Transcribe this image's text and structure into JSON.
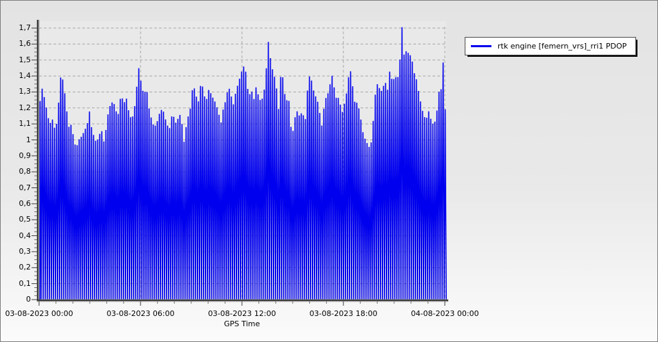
{
  "window": {
    "background_top": "#e3e3e3",
    "background_bottom": "#fbfbfb"
  },
  "legend": {
    "entries": [
      {
        "label": "rtk engine [femern_vrs]_rri1 PDOP",
        "color": "#0000ee"
      }
    ],
    "position": "top-right"
  },
  "chart_data": {
    "type": "line",
    "title": "",
    "xlabel": "GPS Time",
    "ylabel": "",
    "grid": "dashed",
    "plot_bg": "#e9e9e9",
    "grid_color": "#a9a9a9",
    "x_tick_labels": [
      "03-08-2023 00:00",
      "03-08-2023 06:00",
      "03-08-2023 12:00",
      "03-08-2023 18:00",
      "04-08-2023 00:00"
    ],
    "x_tick_hours": [
      0,
      6,
      12,
      18,
      24
    ],
    "y_tick_labels": [
      "0",
      "0,1",
      "0,2",
      "0,3",
      "0,4",
      "0,5",
      "0,6",
      "0,7",
      "0,8",
      "0,9",
      "1",
      "1,1",
      "1,2",
      "1,3",
      "1,4",
      "1,5",
      "1,6",
      "1,7"
    ],
    "y_tick_values": [
      0,
      0.1,
      0.2,
      0.3,
      0.4,
      0.5,
      0.6,
      0.7,
      0.8,
      0.9,
      1.0,
      1.1,
      1.2,
      1.3,
      1.4,
      1.5,
      1.6,
      1.7
    ],
    "ylim": [
      0,
      1.74
    ],
    "xlim_hours": [
      0,
      24.07
    ],
    "legend_entries": [
      "rtk engine [femern_vrs]_rri1 PDOP"
    ],
    "render_note": "trace drops to 0 between epochs, forming a dense comb of vertical spikes; envelope below is the PDOP upper trace",
    "sample_comb_period_hours": 0.1216,
    "series": [
      {
        "name": "rtk engine [femern_vrs]_rri1 PDOP",
        "color": "#0000ee",
        "points": [
          [
            0.0,
            1.19
          ],
          [
            0.08,
            1.26
          ],
          [
            0.15,
            1.33
          ],
          [
            0.22,
            1.31
          ],
          [
            0.3,
            1.27
          ],
          [
            0.4,
            1.22
          ],
          [
            0.5,
            1.15
          ],
          [
            0.6,
            1.12
          ],
          [
            0.7,
            1.1
          ],
          [
            0.8,
            1.13
          ],
          [
            0.9,
            1.08
          ],
          [
            1.0,
            1.05
          ],
          [
            1.1,
            1.2
          ],
          [
            1.2,
            1.26
          ],
          [
            1.3,
            1.43
          ],
          [
            1.38,
            1.39
          ],
          [
            1.5,
            1.31
          ],
          [
            1.6,
            1.22
          ],
          [
            1.7,
            1.12
          ],
          [
            1.8,
            1.06
          ],
          [
            1.9,
            1.1
          ],
          [
            2.0,
            1.04
          ],
          [
            2.1,
            0.98
          ],
          [
            2.2,
            0.95
          ],
          [
            2.35,
            1.0
          ],
          [
            2.5,
            1.02
          ],
          [
            2.7,
            1.06
          ],
          [
            2.85,
            1.1
          ],
          [
            3.0,
            1.19
          ],
          [
            3.1,
            1.08
          ],
          [
            3.25,
            1.02
          ],
          [
            3.4,
            0.98
          ],
          [
            3.55,
            1.03
          ],
          [
            3.7,
            1.06
          ],
          [
            3.85,
            0.98
          ],
          [
            4.0,
            1.1
          ],
          [
            4.1,
            1.18
          ],
          [
            4.25,
            1.23
          ],
          [
            4.4,
            1.24
          ],
          [
            4.55,
            1.18
          ],
          [
            4.7,
            1.16
          ],
          [
            4.85,
            1.3
          ],
          [
            5.0,
            1.22
          ],
          [
            5.15,
            1.27
          ],
          [
            5.3,
            1.18
          ],
          [
            5.45,
            1.13
          ],
          [
            5.6,
            1.16
          ],
          [
            5.75,
            1.3
          ],
          [
            5.88,
            1.46
          ],
          [
            5.95,
            1.42
          ],
          [
            6.05,
            1.35
          ],
          [
            6.2,
            1.28
          ],
          [
            6.35,
            1.33
          ],
          [
            6.5,
            1.2
          ],
          [
            6.65,
            1.13
          ],
          [
            6.8,
            1.08
          ],
          [
            6.95,
            1.1
          ],
          [
            7.1,
            1.16
          ],
          [
            7.3,
            1.2
          ],
          [
            7.5,
            1.12
          ],
          [
            7.7,
            1.06
          ],
          [
            7.9,
            1.18
          ],
          [
            8.05,
            1.1
          ],
          [
            8.2,
            1.13
          ],
          [
            8.4,
            1.17
          ],
          [
            8.55,
            0.97
          ],
          [
            8.75,
            1.12
          ],
          [
            8.95,
            1.2
          ],
          [
            9.1,
            1.35
          ],
          [
            9.25,
            1.3
          ],
          [
            9.4,
            1.22
          ],
          [
            9.6,
            1.38
          ],
          [
            9.75,
            1.28
          ],
          [
            9.9,
            1.25
          ],
          [
            10.05,
            1.32
          ],
          [
            10.2,
            1.28
          ],
          [
            10.4,
            1.24
          ],
          [
            10.6,
            1.18
          ],
          [
            10.75,
            1.1
          ],
          [
            10.9,
            1.2
          ],
          [
            11.05,
            1.25
          ],
          [
            11.2,
            1.34
          ],
          [
            11.35,
            1.28
          ],
          [
            11.5,
            1.22
          ],
          [
            11.65,
            1.31
          ],
          [
            11.8,
            1.36
          ],
          [
            11.95,
            1.42
          ],
          [
            12.1,
            1.46
          ],
          [
            12.25,
            1.42
          ],
          [
            12.4,
            1.26
          ],
          [
            12.55,
            1.32
          ],
          [
            12.7,
            1.25
          ],
          [
            12.85,
            1.34
          ],
          [
            13.0,
            1.26
          ],
          [
            13.15,
            1.24
          ],
          [
            13.3,
            1.3
          ],
          [
            13.42,
            1.4
          ],
          [
            13.52,
            1.65
          ],
          [
            13.62,
            1.56
          ],
          [
            13.75,
            1.46
          ],
          [
            13.9,
            1.41
          ],
          [
            14.05,
            1.32
          ],
          [
            14.2,
            1.16
          ],
          [
            14.32,
            1.47
          ],
          [
            14.45,
            1.36
          ],
          [
            14.6,
            1.23
          ],
          [
            14.75,
            1.28
          ],
          [
            14.9,
            1.08
          ],
          [
            15.05,
            1.05
          ],
          [
            15.2,
            1.2
          ],
          [
            15.35,
            1.15
          ],
          [
            15.55,
            1.17
          ],
          [
            15.75,
            1.13
          ],
          [
            15.92,
            1.38
          ],
          [
            16.05,
            1.41
          ],
          [
            16.2,
            1.32
          ],
          [
            16.4,
            1.26
          ],
          [
            16.55,
            1.22
          ],
          [
            16.7,
            1.07
          ],
          [
            16.85,
            1.2
          ],
          [
            17.0,
            1.28
          ],
          [
            17.15,
            1.3
          ],
          [
            17.3,
            1.42
          ],
          [
            17.45,
            1.33
          ],
          [
            17.6,
            1.25
          ],
          [
            17.75,
            1.27
          ],
          [
            17.9,
            1.16
          ],
          [
            18.05,
            1.22
          ],
          [
            18.2,
            1.3
          ],
          [
            18.38,
            1.46
          ],
          [
            18.5,
            1.38
          ],
          [
            18.65,
            1.24
          ],
          [
            18.85,
            1.23
          ],
          [
            19.0,
            1.15
          ],
          [
            19.15,
            1.05
          ],
          [
            19.3,
            1.0
          ],
          [
            19.45,
            0.97
          ],
          [
            19.6,
            0.94
          ],
          [
            19.75,
            1.1
          ],
          [
            19.88,
            1.28
          ],
          [
            20.0,
            1.35
          ],
          [
            20.15,
            1.32
          ],
          [
            20.3,
            1.3
          ],
          [
            20.45,
            1.38
          ],
          [
            20.6,
            1.3
          ],
          [
            20.75,
            1.44
          ],
          [
            20.9,
            1.36
          ],
          [
            21.05,
            1.4
          ],
          [
            21.2,
            1.38
          ],
          [
            21.32,
            1.45
          ],
          [
            21.45,
            1.73
          ],
          [
            21.55,
            1.58
          ],
          [
            21.65,
            1.46
          ],
          [
            21.75,
            1.62
          ],
          [
            21.88,
            1.5
          ],
          [
            22.0,
            1.55
          ],
          [
            22.15,
            1.43
          ],
          [
            22.3,
            1.39
          ],
          [
            22.45,
            1.3
          ],
          [
            22.6,
            1.22
          ],
          [
            22.75,
            1.15
          ],
          [
            22.9,
            1.13
          ],
          [
            23.05,
            1.18
          ],
          [
            23.2,
            1.12
          ],
          [
            23.35,
            1.09
          ],
          [
            23.5,
            1.15
          ],
          [
            23.65,
            1.3
          ],
          [
            23.8,
            1.32
          ],
          [
            23.92,
            1.52
          ],
          [
            24.0,
            1.2
          ],
          [
            24.05,
            1.18
          ]
        ]
      }
    ]
  }
}
